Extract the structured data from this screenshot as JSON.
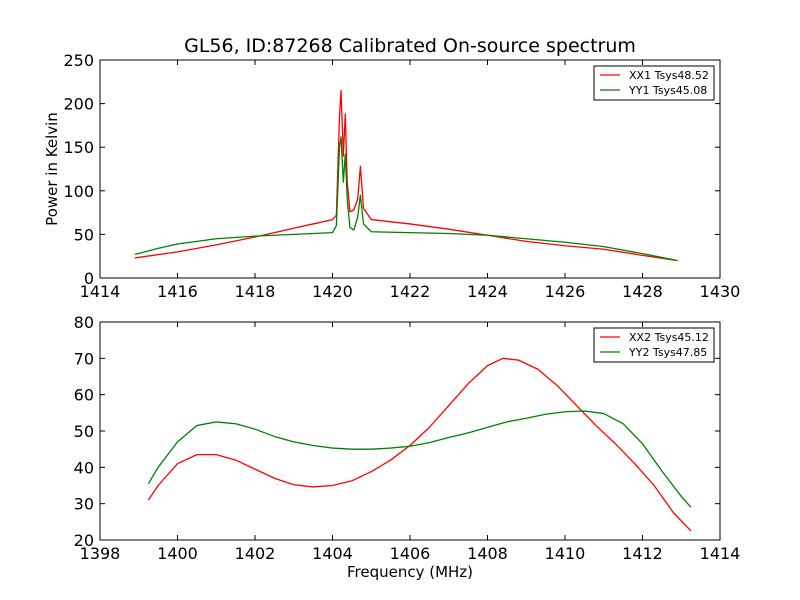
{
  "figure": {
    "title": "GL56, ID:87268 Calibrated On-source spectrum"
  },
  "chart_data": [
    {
      "type": "line",
      "title": "GL56, ID:87268 Calibrated On-source spectrum",
      "xlabel": "",
      "ylabel": "Power in Kelvin",
      "xlim": [
        1414,
        1430
      ],
      "ylim": [
        0,
        250
      ],
      "xticks": [
        1414,
        1416,
        1418,
        1420,
        1422,
        1424,
        1426,
        1428,
        1430
      ],
      "yticks": [
        0,
        50,
        100,
        150,
        200,
        250
      ],
      "legend_position": "top-right",
      "grid": false,
      "series": [
        {
          "name": "XX1 Tsys48.52",
          "color": "#ff0000",
          "x": [
            1414.9,
            1416.0,
            1417.0,
            1418.0,
            1419.0,
            1419.5,
            1420.0,
            1420.1,
            1420.18,
            1420.22,
            1420.28,
            1420.33,
            1420.38,
            1420.45,
            1420.55,
            1420.65,
            1420.72,
            1420.8,
            1421.0,
            1422.0,
            1423.0,
            1424.0,
            1425.0,
            1426.0,
            1427.0,
            1428.0,
            1428.9
          ],
          "y": [
            23,
            30,
            38,
            47,
            57,
            62,
            67,
            72,
            185,
            215,
            140,
            188,
            110,
            76,
            78,
            90,
            128,
            80,
            67,
            62,
            56,
            49,
            42,
            37,
            33,
            26,
            20
          ]
        },
        {
          "name": "YY1 Tsys45.08",
          "color": "#008000",
          "x": [
            1414.9,
            1415.5,
            1416.0,
            1417.0,
            1418.0,
            1419.0,
            1420.0,
            1420.1,
            1420.18,
            1420.22,
            1420.28,
            1420.33,
            1420.38,
            1420.45,
            1420.55,
            1420.65,
            1420.72,
            1420.8,
            1421.0,
            1422.0,
            1423.0,
            1424.0,
            1425.0,
            1426.0,
            1427.0,
            1428.0,
            1428.9
          ],
          "y": [
            27,
            34,
            39,
            45,
            48,
            50,
            52,
            60,
            150,
            162,
            110,
            142,
            90,
            58,
            55,
            70,
            95,
            62,
            53,
            52,
            51,
            49,
            45,
            41,
            36,
            28,
            20
          ]
        }
      ]
    },
    {
      "type": "line",
      "title": "",
      "xlabel": "Frequency (MHz)",
      "ylabel": "",
      "xlim": [
        1398,
        1414
      ],
      "ylim": [
        20,
        80
      ],
      "xticks": [
        1398,
        1400,
        1402,
        1404,
        1406,
        1408,
        1410,
        1412,
        1414
      ],
      "yticks": [
        20,
        30,
        40,
        50,
        60,
        70,
        80
      ],
      "legend_position": "top-right",
      "grid": false,
      "series": [
        {
          "name": "XX2 Tsys45.12",
          "color": "#ff0000",
          "x": [
            1399.25,
            1399.5,
            1400.0,
            1400.5,
            1401.0,
            1401.5,
            1402.0,
            1402.5,
            1403.0,
            1403.5,
            1404.0,
            1404.5,
            1405.0,
            1405.5,
            1406.0,
            1406.5,
            1407.0,
            1407.5,
            1408.0,
            1408.4,
            1408.8,
            1409.3,
            1409.8,
            1410.3,
            1410.8,
            1411.3,
            1411.8,
            1412.3,
            1412.8,
            1413.25
          ],
          "y": [
            31,
            35,
            41,
            43.5,
            43.5,
            42,
            39.5,
            37,
            35.2,
            34.6,
            35,
            36.3,
            38.8,
            42,
            46,
            51,
            57,
            63,
            68,
            70,
            69.5,
            67,
            62.5,
            57,
            51.5,
            46.5,
            41,
            35,
            27.5,
            22.5
          ]
        },
        {
          "name": "YY2 Tsys47.85",
          "color": "#008000",
          "x": [
            1399.25,
            1399.5,
            1400.0,
            1400.5,
            1401.0,
            1401.5,
            1402.0,
            1402.5,
            1403.0,
            1403.5,
            1404.0,
            1404.5,
            1405.0,
            1405.5,
            1406.0,
            1406.5,
            1407.0,
            1407.5,
            1408.0,
            1408.5,
            1409.0,
            1409.5,
            1410.0,
            1410.5,
            1411.0,
            1411.5,
            1412.0,
            1412.5,
            1413.0,
            1413.25
          ],
          "y": [
            35.5,
            40,
            47,
            51.5,
            52.5,
            52,
            50.5,
            48.5,
            47,
            46,
            45.3,
            45,
            45,
            45.3,
            45.8,
            46.8,
            48.2,
            49.5,
            51,
            52.5,
            53.5,
            54.6,
            55.3,
            55.5,
            54.8,
            52,
            46.5,
            39,
            32,
            29
          ]
        }
      ]
    }
  ]
}
